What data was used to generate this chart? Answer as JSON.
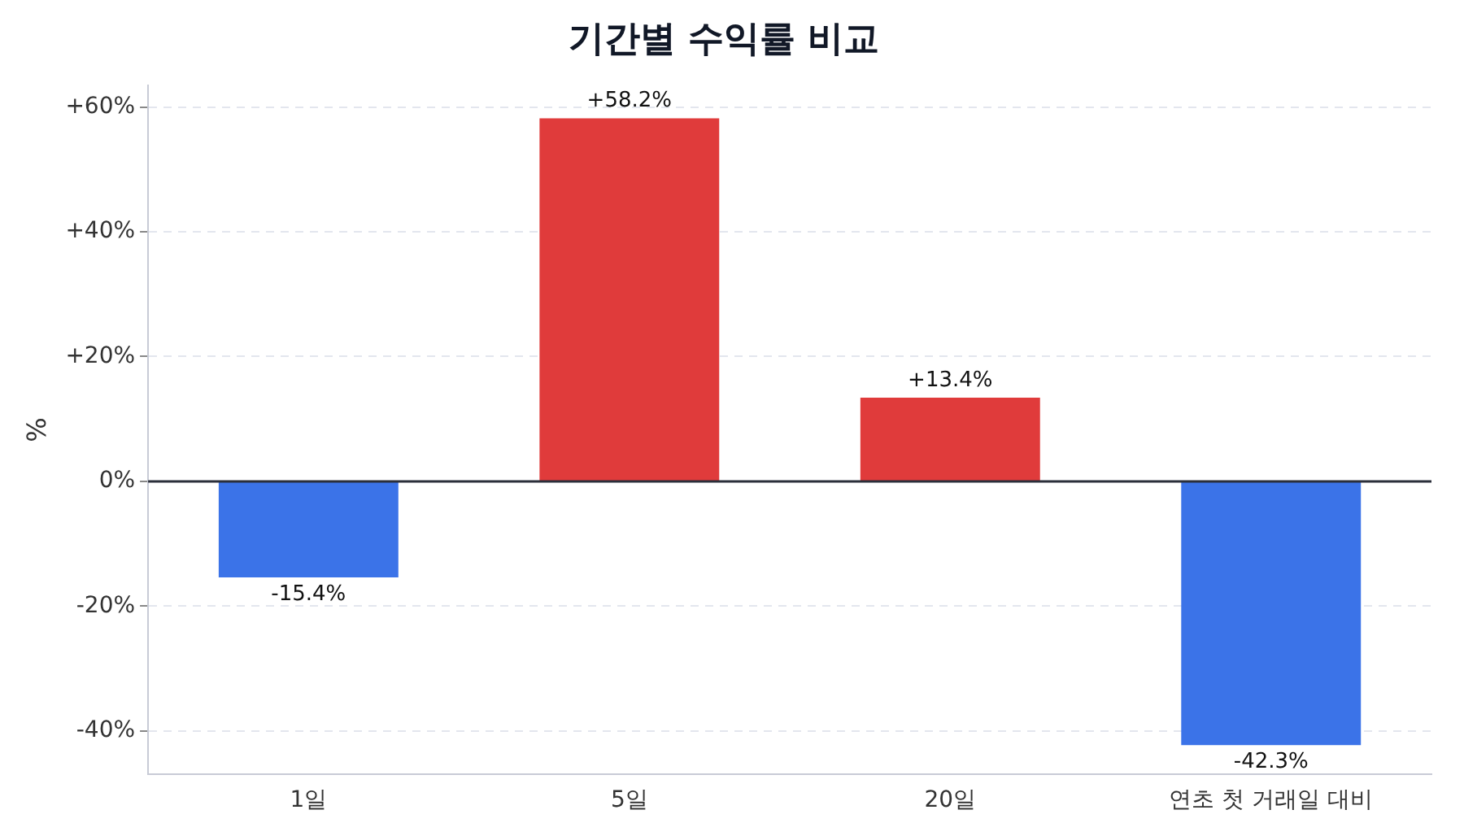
{
  "chart_data": {
    "type": "bar",
    "title": "기간별 수익률 비교",
    "ylabel": "%",
    "categories": [
      "1일",
      "5일",
      "20일",
      "연초 첫 거래일 대비"
    ],
    "values": [
      -15.4,
      58.2,
      13.4,
      -42.3
    ],
    "colors": [
      "#3b73e8",
      "#e03b3b",
      "#e03b3b",
      "#3b73e8"
    ],
    "value_labels": [
      "-15.4%",
      "+58.2%",
      "+13.4%",
      "-42.3%"
    ],
    "ylim": [
      -47,
      63.5
    ],
    "yticks": [
      {
        "value": -40,
        "label": "-40%"
      },
      {
        "value": -20,
        "label": "-20%"
      },
      {
        "value": 0,
        "label": "0%"
      },
      {
        "value": 20,
        "label": "+20%"
      },
      {
        "value": 40,
        "label": "+40%"
      },
      {
        "value": 60,
        "label": "+60%"
      }
    ],
    "ref_lines": [
      {
        "axis": "y",
        "value": 0,
        "label": null,
        "color": "#2b2f3a"
      }
    ],
    "grid": "y",
    "legend": false
  }
}
